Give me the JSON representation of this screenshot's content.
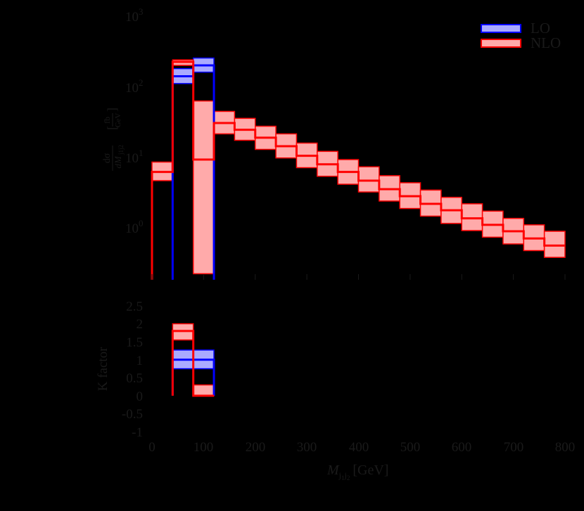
{
  "chart_data": [
    {
      "panel": "upper",
      "type": "line",
      "subtype": "histogram-step-with-bands",
      "title": "",
      "xlabel": "M_{j1j2} [GeV]",
      "ylabel": "dσ/dM_{j1j2} [fb/GeV]",
      "yscale": "log",
      "xlim": [
        0,
        800
      ],
      "ylim": [
        0.21,
        1000
      ],
      "yticks": [
        "10^0",
        "10^1",
        "10^2",
        "10^3"
      ],
      "legend": {
        "position": "upper right",
        "entries": [
          "LO",
          "NLO"
        ]
      },
      "series": [
        {
          "name": "LO",
          "color": "#0000ff",
          "band_color": "#aaaaff",
          "bins": [
            {
              "x0": 40,
              "x1": 80,
              "central": 140,
              "low": 110,
              "high": 180
            },
            {
              "x0": 80,
              "x1": 120,
              "central": 200,
              "low": 160,
              "high": 255
            }
          ]
        },
        {
          "name": "NLO",
          "color": "#ff0000",
          "band_color": "#ffaaaa",
          "bins": [
            {
              "x0": 0,
              "x1": 40,
              "central": 6.0,
              "low": 4.5,
              "high": 8.3
            },
            {
              "x0": 40,
              "x1": 80,
              "central": 225,
              "low": 200,
              "high": 240
            },
            {
              "x0": 80,
              "x1": 120,
              "central": 9.0,
              "low": 0.21,
              "high": 62
            },
            {
              "x0": 120,
              "x1": 160,
              "central": 30,
              "low": 21,
              "high": 44
            },
            {
              "x0": 160,
              "x1": 200,
              "central": 24,
              "low": 17,
              "high": 35
            },
            {
              "x0": 200,
              "x1": 240,
              "central": 18.5,
              "low": 12.6,
              "high": 27
            },
            {
              "x0": 240,
              "x1": 280,
              "central": 14,
              "low": 9.5,
              "high": 21
            },
            {
              "x0": 280,
              "x1": 320,
              "central": 10.2,
              "low": 6.9,
              "high": 15.5
            },
            {
              "x0": 320,
              "x1": 360,
              "central": 7.7,
              "low": 5.2,
              "high": 11.8
            },
            {
              "x0": 360,
              "x1": 400,
              "central": 6.0,
              "low": 4.0,
              "high": 9.0
            },
            {
              "x0": 400,
              "x1": 440,
              "central": 4.5,
              "low": 3.1,
              "high": 7.1
            },
            {
              "x0": 440,
              "x1": 480,
              "central": 3.4,
              "low": 2.3,
              "high": 5.3
            },
            {
              "x0": 480,
              "x1": 520,
              "central": 2.7,
              "low": 1.8,
              "high": 4.2
            },
            {
              "x0": 520,
              "x1": 560,
              "central": 2.1,
              "low": 1.4,
              "high": 3.3
            },
            {
              "x0": 560,
              "x1": 600,
              "central": 1.7,
              "low": 1.1,
              "high": 2.6
            },
            {
              "x0": 600,
              "x1": 640,
              "central": 1.3,
              "low": 0.87,
              "high": 2.1
            },
            {
              "x0": 640,
              "x1": 680,
              "central": 1.05,
              "low": 0.7,
              "high": 1.65
            },
            {
              "x0": 680,
              "x1": 720,
              "central": 0.85,
              "low": 0.56,
              "high": 1.3
            },
            {
              "x0": 720,
              "x1": 760,
              "central": 0.67,
              "low": 0.45,
              "high": 1.05
            },
            {
              "x0": 760,
              "x1": 800,
              "central": 0.53,
              "low": 0.36,
              "high": 0.85
            }
          ]
        }
      ]
    },
    {
      "panel": "lower",
      "type": "line",
      "subtype": "histogram-step-with-bands",
      "xlabel": "M_{j1j2} [GeV]",
      "ylabel": "K factor",
      "xlim": [
        0,
        800
      ],
      "ylim": [
        -1.2,
        2.7
      ],
      "xticks": [
        "0",
        "100",
        "200",
        "300",
        "400",
        "500",
        "600",
        "700",
        "800"
      ],
      "yticks": [
        "2.5",
        "2",
        "1.5",
        "1",
        "0.5",
        "0",
        "-0.5",
        "-1"
      ],
      "series": [
        {
          "name": "LO",
          "color": "#0000ff",
          "band_color": "#aaaaff",
          "bins": [
            {
              "x0": 40,
              "x1": 80,
              "central": 1.0,
              "low": 0.75,
              "high": 1.27
            },
            {
              "x0": 80,
              "x1": 120,
              "central": 1.0,
              "low": 0.75,
              "high": 1.27
            }
          ]
        },
        {
          "name": "NLO",
          "color": "#ff0000",
          "band_color": "#ffaaaa",
          "bins": [
            {
              "x0": 40,
              "x1": 80,
              "central": 1.8,
              "low": 1.55,
              "high": 2.0
            },
            {
              "x0": 80,
              "x1": 120,
              "central": 0.0,
              "low": 0.0,
              "high": 0.3
            }
          ]
        }
      ]
    }
  ],
  "labels": {
    "y_upper_ticks": [
      "10",
      "10",
      "10",
      "10"
    ],
    "y_upper_exps": [
      "3",
      "2",
      "1",
      "0"
    ],
    "y_lower_ticks": [
      "2.5",
      "2",
      "1.5",
      "1",
      "0.5",
      "0",
      "-0.5",
      "-1"
    ],
    "x_ticks": [
      "0",
      "100",
      "200",
      "300",
      "400",
      "500",
      "600",
      "700",
      "800"
    ],
    "x_title_main": "M",
    "x_title_sub": "j",
    "x_title_sub1": "1",
    "x_title_sub2": "j",
    "x_title_sub3": "2",
    "x_title_unit": "[GeV]",
    "y_upper_num": "dσ",
    "y_upper_den": "dM",
    "y_upper_den_sub": "j1j2",
    "y_upper_unit_num": "fb",
    "y_upper_unit_den": "GeV",
    "y_lower_title": "K factor",
    "legend_lo": "LO",
    "legend_nlo": "NLO"
  }
}
